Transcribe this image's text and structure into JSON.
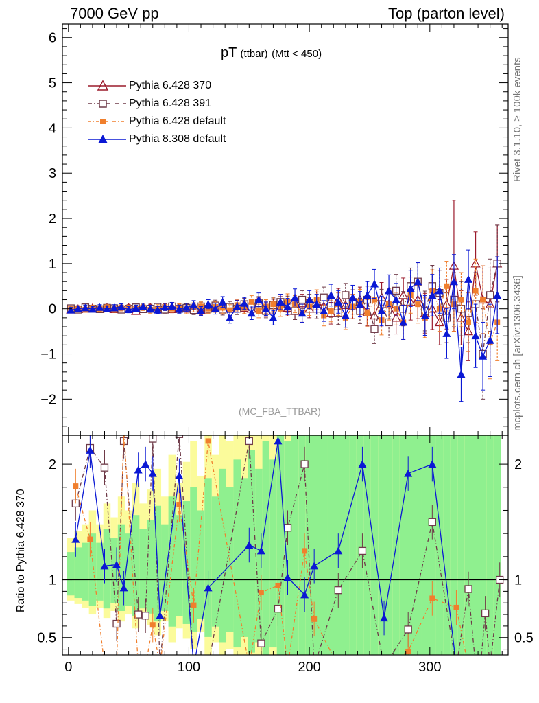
{
  "header": {
    "left": "7000 GeV pp",
    "right": "Top (parton level)"
  },
  "side_labels": {
    "rivet": "Rivet 3.1.10, ≥ 100k events",
    "mcplots": "mcplots.cern.ch [arXiv:1306.3436]"
  },
  "plot_title": {
    "main": "pT",
    "sub": "(ttbar)",
    "cut": "(Mtt < 450)"
  },
  "analysis_tag": "(MC_FBA_TTBAR)",
  "ratio_ylabel": "Ratio to Pythia 6.428 370",
  "colors": {
    "p370": "#9b1b2c",
    "p391": "#6e3a48",
    "pdef": "#f07f2d",
    "p8": "#0a18d4",
    "band_green": "#8ff08f",
    "band_yellow": "#fbfb9b"
  },
  "legend": [
    {
      "label": "Pythia 6.428 370",
      "series": "p370"
    },
    {
      "label": "Pythia 6.428 391",
      "series": "p391"
    },
    {
      "label": "Pythia 6.428 default",
      "series": "pdef"
    },
    {
      "label": "Pythia 8.308 default",
      "series": "p8"
    }
  ],
  "chart_data": {
    "type": "scatter",
    "x_axis": {
      "range": [
        -5,
        365
      ],
      "ticks": [
        0,
        100,
        200,
        300
      ]
    },
    "main_y_axis": {
      "range": [
        -2.8,
        6.3
      ],
      "ticks": [
        -2,
        -1,
        0,
        1,
        2,
        3,
        4,
        5,
        6
      ]
    },
    "ratio_y_axis": {
      "range": [
        0.35,
        2.25
      ],
      "ticks": [
        0.5,
        1,
        2
      ],
      "ticklabels": [
        "0.5",
        "1",
        "2"
      ],
      "reference": 1
    },
    "x": [
      2,
      8,
      14,
      20,
      26,
      32,
      38,
      44,
      50,
      56,
      62,
      68,
      74,
      80,
      86,
      92,
      98,
      104,
      110,
      116,
      122,
      128,
      134,
      140,
      146,
      152,
      158,
      164,
      170,
      176,
      182,
      188,
      194,
      200,
      206,
      212,
      218,
      224,
      230,
      236,
      242,
      248,
      254,
      260,
      266,
      272,
      278,
      284,
      290,
      296,
      302,
      308,
      314,
      320,
      326,
      332,
      338,
      344,
      350,
      356
    ],
    "series": [
      {
        "name": "Pythia 6.428 370",
        "key": "p370",
        "values": [
          -0.02,
          -0.01,
          0.0,
          0.01,
          0.0,
          0.02,
          -0.01,
          0.01,
          0.02,
          -0.05,
          0.01,
          0.02,
          0.0,
          0.03,
          -0.01,
          0.02,
          0.01,
          0.0,
          -0.03,
          0.02,
          0.05,
          0.04,
          0.0,
          0.06,
          0.02,
          0.0,
          0.09,
          -0.02,
          0.05,
          0.1,
          0.02,
          -0.05,
          0.12,
          0.0,
          0.15,
          0.05,
          -0.1,
          0.2,
          0.08,
          0.05,
          0.2,
          -0.08,
          -0.15,
          0.25,
          0.1,
          -0.2,
          0.3,
          0.15,
          0.2,
          -0.1,
          0.0,
          -0.3,
          0.1,
          0.95,
          -0.2,
          -0.5,
          1.0,
          0.2,
          0.1,
          1.0
        ],
        "errors": [
          0.06,
          0.06,
          0.06,
          0.06,
          0.06,
          0.06,
          0.07,
          0.07,
          0.07,
          0.07,
          0.07,
          0.08,
          0.08,
          0.08,
          0.08,
          0.09,
          0.09,
          0.1,
          0.1,
          0.1,
          0.12,
          0.12,
          0.12,
          0.13,
          0.13,
          0.14,
          0.15,
          0.15,
          0.16,
          0.17,
          0.18,
          0.19,
          0.2,
          0.2,
          0.22,
          0.23,
          0.24,
          0.25,
          0.26,
          0.27,
          0.28,
          0.3,
          0.32,
          0.33,
          0.35,
          0.36,
          0.38,
          0.4,
          0.42,
          0.44,
          0.46,
          0.5,
          0.55,
          1.45,
          0.6,
          0.65,
          0.7,
          0.75,
          0.8,
          0.85
        ]
      },
      {
        "name": "Pythia 6.428 391",
        "key": "p391",
        "values": [
          0.01,
          -0.02,
          0.03,
          0.0,
          -0.01,
          0.02,
          0.01,
          -0.02,
          0.0,
          0.03,
          -0.01,
          0.0,
          0.04,
          -0.02,
          0.05,
          0.0,
          0.02,
          -0.03,
          0.05,
          0.0,
          0.07,
          -0.02,
          0.04,
          0.0,
          0.1,
          0.05,
          0.12,
          -0.05,
          0.08,
          0.15,
          0.1,
          -0.05,
          0.2,
          0.12,
          0.0,
          0.25,
          0.05,
          -0.1,
          0.3,
          0.15,
          -0.05,
          0.2,
          -0.45,
          0.1,
          -0.3,
          0.4,
          0.0,
          0.5,
          0.6,
          -0.05,
          0.5,
          0.35,
          -0.2,
          0.2,
          0.0,
          -0.1,
          0.1,
          -1.0,
          0.3,
          1.0
        ],
        "errors": [
          0.06,
          0.06,
          0.06,
          0.06,
          0.06,
          0.06,
          0.07,
          0.07,
          0.07,
          0.07,
          0.07,
          0.08,
          0.08,
          0.08,
          0.08,
          0.09,
          0.09,
          0.1,
          0.1,
          0.1,
          0.12,
          0.12,
          0.12,
          0.13,
          0.13,
          0.14,
          0.15,
          0.15,
          0.16,
          0.17,
          0.18,
          0.19,
          0.2,
          0.2,
          0.22,
          0.23,
          0.24,
          0.25,
          0.26,
          0.27,
          0.28,
          0.3,
          0.32,
          0.33,
          0.35,
          0.36,
          0.38,
          0.4,
          0.42,
          0.44,
          0.46,
          0.5,
          0.55,
          0.6,
          0.6,
          0.65,
          0.7,
          1.0,
          0.8,
          0.85
        ]
      },
      {
        "name": "Pythia 6.428 default",
        "key": "pdef",
        "values": [
          0.0,
          0.01,
          -0.02,
          0.02,
          0.0,
          0.03,
          -0.01,
          0.02,
          0.01,
          0.0,
          0.03,
          -0.02,
          0.01,
          0.04,
          0.0,
          0.02,
          -0.02,
          0.03,
          0.05,
          0.0,
          0.04,
          0.02,
          -0.03,
          0.08,
          0.02,
          0.15,
          -0.05,
          0.05,
          0.1,
          0.0,
          0.15,
          0.1,
          -0.1,
          0.05,
          0.2,
          -0.15,
          -0.05,
          0.1,
          -0.2,
          0.05,
          0.15,
          -0.1,
          0.2,
          -0.25,
          0.1,
          0.0,
          -0.3,
          0.3,
          0.1,
          -0.2,
          0.4,
          0.0,
          0.5,
          0.1,
          0.2,
          -0.3,
          0.4,
          0.2,
          -0.75,
          -0.3
        ],
        "errors": [
          0.06,
          0.06,
          0.06,
          0.06,
          0.06,
          0.06,
          0.07,
          0.07,
          0.07,
          0.07,
          0.07,
          0.08,
          0.08,
          0.08,
          0.08,
          0.09,
          0.09,
          0.1,
          0.1,
          0.1,
          0.12,
          0.12,
          0.12,
          0.13,
          0.13,
          0.14,
          0.15,
          0.15,
          0.16,
          0.17,
          0.18,
          0.19,
          0.2,
          0.2,
          0.22,
          0.23,
          0.24,
          0.25,
          0.26,
          0.27,
          0.28,
          0.3,
          0.32,
          0.33,
          0.35,
          0.36,
          0.38,
          0.4,
          0.42,
          0.44,
          0.46,
          0.5,
          0.55,
          0.6,
          0.6,
          0.65,
          0.7,
          0.75,
          0.8,
          0.85
        ]
      },
      {
        "name": "Pythia 8.308 default",
        "key": "p8",
        "values": [
          -0.03,
          0.0,
          0.02,
          -0.01,
          0.03,
          0.0,
          0.02,
          0.04,
          -0.02,
          0.01,
          0.05,
          0.0,
          -0.03,
          0.04,
          0.06,
          -0.01,
          0.03,
          0.08,
          -0.05,
          0.1,
          0.0,
          0.15,
          -0.2,
          0.05,
          0.12,
          -0.1,
          0.2,
          0.0,
          -0.2,
          0.15,
          0.05,
          0.25,
          -0.1,
          0.2,
          0.1,
          -0.05,
          0.3,
          0.15,
          -0.15,
          0.25,
          0.1,
          0.3,
          0.55,
          -0.05,
          0.4,
          0.2,
          -0.3,
          0.45,
          0.6,
          -0.15,
          0.3,
          0.4,
          -0.55,
          0.6,
          -1.45,
          0.65,
          -0.6,
          -1.05,
          -0.7,
          0.3
        ],
        "errors": [
          0.06,
          0.06,
          0.06,
          0.06,
          0.06,
          0.06,
          0.07,
          0.07,
          0.07,
          0.07,
          0.07,
          0.08,
          0.08,
          0.08,
          0.08,
          0.09,
          0.09,
          0.1,
          0.1,
          0.1,
          0.12,
          0.12,
          0.12,
          0.13,
          0.13,
          0.14,
          0.15,
          0.15,
          0.16,
          0.17,
          0.18,
          0.19,
          0.2,
          0.2,
          0.22,
          0.23,
          0.24,
          0.25,
          0.26,
          0.27,
          0.28,
          0.3,
          0.32,
          0.33,
          0.35,
          0.36,
          0.38,
          0.4,
          0.42,
          0.44,
          0.46,
          0.5,
          0.55,
          0.6,
          0.6,
          0.65,
          0.7,
          0.75,
          0.8,
          0.85
        ]
      }
    ],
    "ratio_band_fraction": [
      0.3,
      0.35,
      0.4,
      0.5,
      0.4,
      0.55,
      0.45,
      0.6,
      0.5,
      0.7,
      0.55,
      0.65,
      0.8,
      0.6,
      0.9,
      0.7,
      0.85,
      1.0,
      0.75,
      1.1,
      0.9,
      1.2,
      1.0,
      1.3,
      1.1,
      1.4,
      1.2,
      1.5,
      1.3,
      1.6,
      1.5,
      1.7,
      1.6,
      1.8,
      1.9,
      2.0,
      1.7,
      2.1,
      1.9,
      2.2,
      2.0,
      2.3,
      2.1,
      2.4,
      2.2,
      2.5,
      2.3,
      2.6,
      2.4,
      2.5,
      2.7,
      2.8,
      2.6,
      2.9,
      3.0,
      2.8,
      3.1,
      3.2,
      3.0,
      3.3
    ],
    "ratios": {
      "p391": [
        1.66,
        2.14,
        1.97,
        0.62,
        2.2,
        0.7,
        0.69,
        2.22,
        0.0,
        2.26,
        0.0,
        0.0,
        2.2,
        0.45,
        0.75,
        1.45,
        2.0,
        0.0,
        0.91,
        1.25,
        0.0,
        0.57,
        1.5,
        0.0,
        0.92,
        0.0,
        0.0,
        0.71,
        0.0,
        1.0
      ],
      "pdef": [
        1.81,
        1.35,
        0.0,
        0.0,
        2.3,
        0.0,
        0.0,
        0.61,
        0.0,
        1.65,
        0.78,
        2.2,
        0.0,
        0.89,
        0.95,
        0.0,
        1.25,
        0.66,
        0.0,
        0.0,
        0.0,
        0.38,
        0.84,
        0.76,
        0.0,
        0.0,
        0.0,
        0.0,
        0.0,
        0.0
      ],
      "p8": [
        1.35,
        2.12,
        1.12,
        1.13,
        0.93,
        1.95,
        2.0,
        1.92,
        0.69,
        1.9,
        0.0,
        0.93,
        1.3,
        1.25,
        2.2,
        1.02,
        0.87,
        1.12,
        1.25,
        2.0,
        0.67,
        1.92,
        2.0,
        0.0,
        0.0,
        0.0,
        0.0,
        0.0,
        0.0,
        0.0
      ]
    },
    "ratio_x": [
      6,
      18,
      30,
      40,
      46,
      58,
      64,
      70,
      76,
      92,
      104,
      116,
      150,
      160,
      174,
      182,
      196,
      204,
      224,
      244,
      262,
      282,
      302,
      322,
      332,
      338,
      342,
      346,
      350,
      358
    ]
  }
}
